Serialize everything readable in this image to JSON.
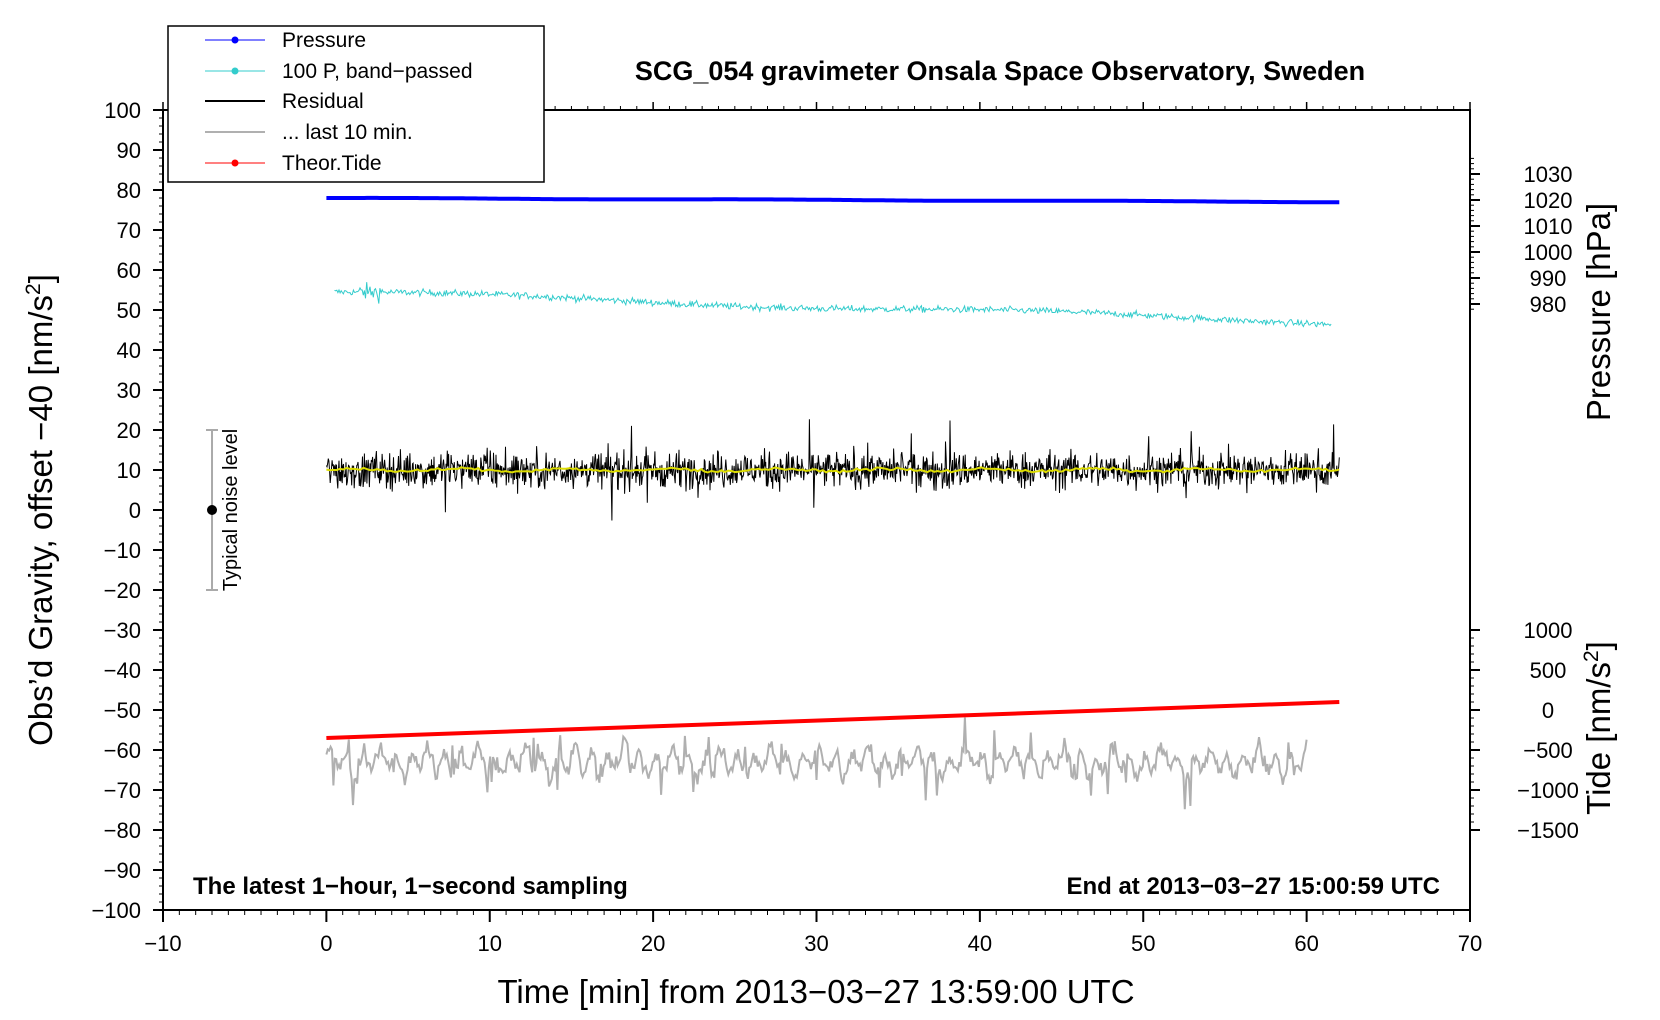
{
  "chart_data": {
    "type": "line",
    "title": "SCG_054 gravimeter Onsala Space Observatory, Sweden",
    "xlabel": "Time [min] from 2013−03−27 13:59:00 UTC",
    "ylabel_left": "Obs’d Gravity, offset −40 [nm/s",
    "ylabel_left_sup": "2",
    "ylabel_left_end": "]",
    "ylabel_right_top": "Pressure [hPa]",
    "ylabel_right_bottom": "Tide [nm/s",
    "ylabel_right_bottom_sup": "2",
    "ylabel_right_bottom_end": "]",
    "xlim": [
      -10,
      70
    ],
    "ylim": [
      -100,
      100
    ],
    "x_ticks": [
      -10,
      0,
      10,
      20,
      30,
      40,
      50,
      60,
      70
    ],
    "x_tick_labels": [
      "−10",
      "0",
      "10",
      "20",
      "30",
      "40",
      "50",
      "60",
      "70"
    ],
    "y_ticks": [
      100,
      90,
      80,
      70,
      60,
      50,
      40,
      30,
      20,
      10,
      0,
      -10,
      -20,
      -30,
      -40,
      -50,
      -60,
      -70,
      -80,
      -90,
      -100
    ],
    "y_tick_labels": [
      "100",
      "90",
      "80",
      "70",
      "60",
      "50",
      "40",
      "30",
      "20",
      "10",
      "0",
      "−10",
      "−20",
      "−30",
      "−40",
      "−50",
      "−60",
      "−70",
      "−80",
      "−90",
      "−100"
    ],
    "pressure_axis": {
      "ticks": [
        1030,
        1020,
        1010,
        1000,
        990,
        980
      ],
      "tick_labels": [
        "1030",
        "1020",
        "1010",
        "1000",
        "990",
        "980"
      ],
      "left_units_per_hpa": 0.65,
      "left_at_1020": 77.5
    },
    "tide_axis": {
      "ticks": [
        1000,
        500,
        0,
        -500,
        -1000,
        -1500
      ],
      "tick_labels": [
        "1000",
        "500",
        "0",
        "−500",
        "−1000",
        "−1500"
      ],
      "left_units_per_nms2": 0.02,
      "left_at_0": -50
    },
    "series": [
      {
        "name": "Pressure",
        "color": "#0000ff",
        "x_range": [
          0,
          62
        ],
        "left_units_start": 78,
        "left_units_end": 77,
        "units": "hPa"
      },
      {
        "name": "100 P, band−passed",
        "color": "#33cccc",
        "x_range": [
          0.5,
          61.5
        ],
        "left_units_start": 54.5,
        "left_units_end": 47
      },
      {
        "name": "Residual",
        "color": "#000000",
        "x_range": [
          0,
          62
        ],
        "left_units_mean": 10,
        "left_units_spread": 8
      },
      {
        "name": "... last 10 min.",
        "color": "#b0b0b0",
        "x_range": [
          0,
          60
        ],
        "left_units_mean": -63,
        "left_units_spread": 6
      },
      {
        "name": "Theor.Tide",
        "color": "#ff0000",
        "x_range": [
          0,
          62
        ],
        "left_units_start": -57,
        "left_units_end": -48
      }
    ],
    "smoothed_color": "#dddd00",
    "noise_bar": {
      "x": -7,
      "center": 0,
      "low": -20,
      "high": 20,
      "label": "Typical noise level"
    },
    "annotation_left": "The latest 1−hour, 1−second sampling",
    "annotation_right": "End at 2013−03−27 15:00:59 UTC"
  }
}
